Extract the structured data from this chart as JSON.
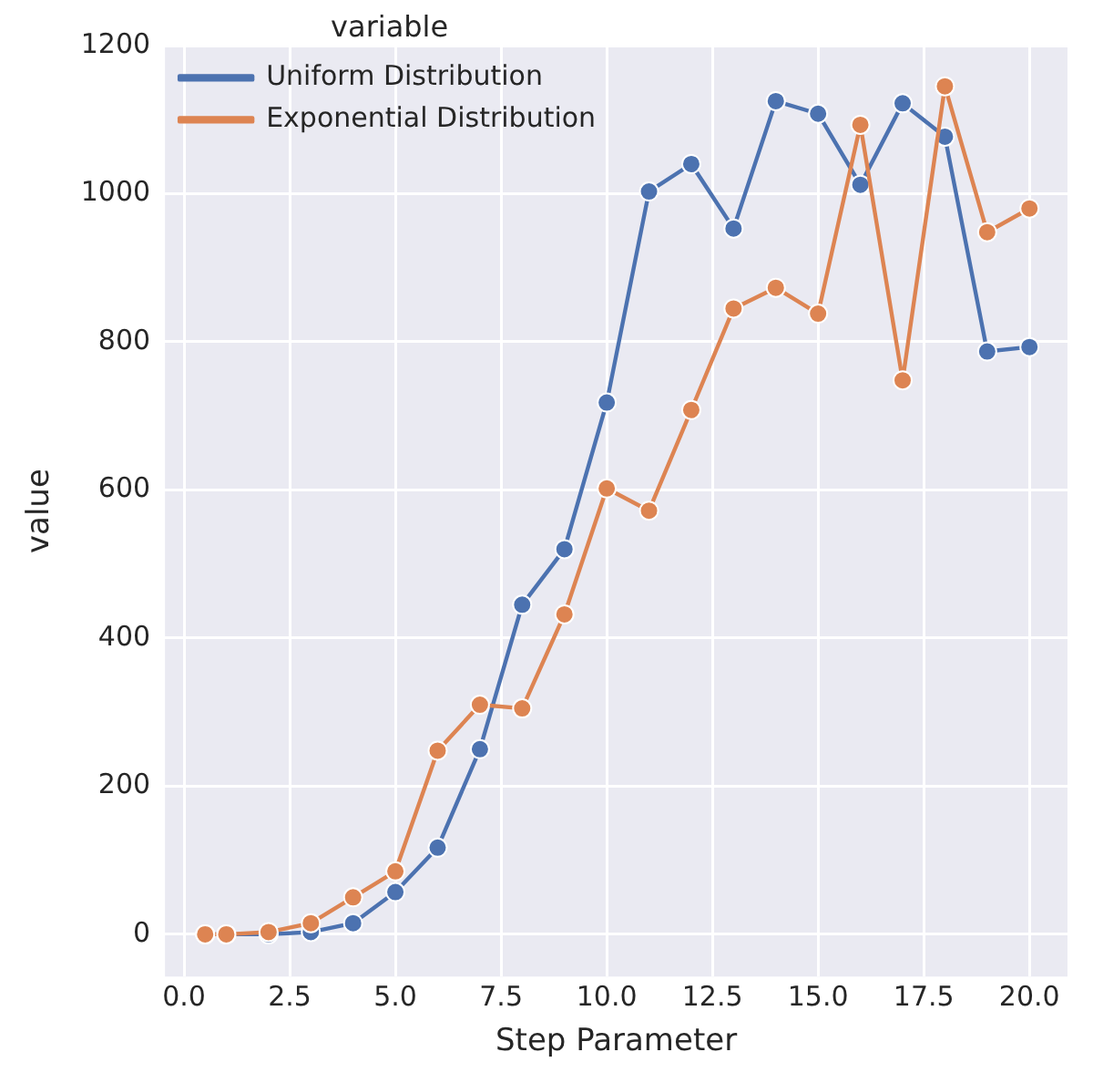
{
  "chart_data": {
    "type": "line",
    "xlabel": "Step Parameter",
    "ylabel": "value",
    "legend_title": "variable",
    "legend": "top left",
    "grid": true,
    "marker": "circle",
    "line_style": "solid",
    "xlim": [
      -0.45,
      20.9
    ],
    "xticks": [
      {
        "value": 0,
        "label": "0.0"
      },
      {
        "value": 2.5,
        "label": "2.5"
      },
      {
        "value": 5,
        "label": "5.0"
      },
      {
        "value": 7.5,
        "label": "7.5"
      },
      {
        "value": 10,
        "label": "10.0"
      },
      {
        "value": 12.5,
        "label": "12.5"
      },
      {
        "value": 15,
        "label": "15.0"
      },
      {
        "value": 17.5,
        "label": "17.5"
      },
      {
        "value": 20,
        "label": "20.0"
      }
    ],
    "ylim": [
      -57,
      1200
    ],
    "yticks": [
      0,
      200,
      400,
      600,
      800,
      1000,
      1200
    ],
    "x": [
      0.5,
      1,
      2,
      3,
      4,
      5,
      6,
      7,
      8,
      9,
      10,
      11,
      12,
      13,
      14,
      15,
      16,
      17,
      18,
      19,
      20
    ],
    "series": [
      {
        "name": "Uniform Distribution",
        "color": "#4c72b0",
        "values": [
          0,
          0,
          0,
          3,
          15,
          57,
          117,
          250,
          445,
          520,
          718,
          1003,
          1040,
          953,
          1125,
          1108,
          1012,
          1122,
          1077,
          787,
          793
        ]
      },
      {
        "name": "Exponential Distribution",
        "color": "#dd8452",
        "values": [
          0,
          0,
          3,
          15,
          50,
          85,
          248,
          310,
          305,
          432,
          602,
          572,
          708,
          845,
          873,
          838,
          1093,
          748,
          1145,
          948,
          980
        ]
      }
    ]
  }
}
